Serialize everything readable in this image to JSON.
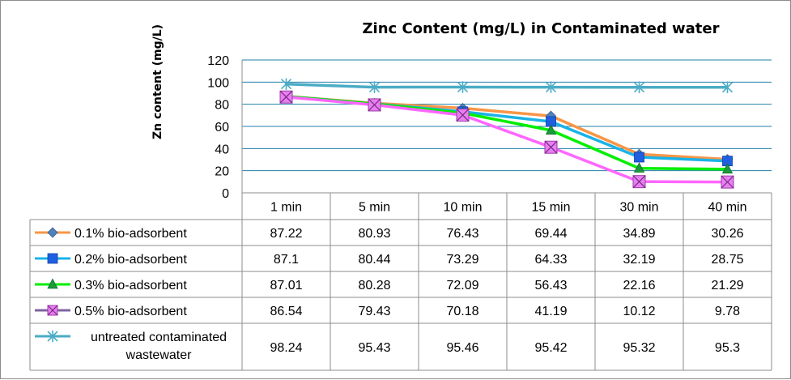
{
  "chart_data": {
    "type": "line",
    "title": "Zinc Content (mg/L) in Contaminated water",
    "xlabel": "",
    "ylabel": "Zn content (mg/L)",
    "ylim": [
      0,
      120
    ],
    "yticks": [
      "0",
      "20",
      "40",
      "60",
      "80",
      "100",
      "120"
    ],
    "grid": true,
    "legend": "data-table",
    "categories": [
      "1 min",
      "5 min",
      "10 min",
      "15 min",
      "30 min",
      "40 min"
    ],
    "series": [
      {
        "name": "0.1% bio-adsorbent",
        "values": [
          "87.22",
          "80.93",
          "76.43",
          "69.44",
          "34.89",
          "30.26"
        ],
        "line_color": "#f79646",
        "marker_color": "#4f81bd",
        "marker": "diamond"
      },
      {
        "name": "0.2% bio-adsorbent",
        "values": [
          "87.1",
          "80.44",
          "73.29",
          "64.33",
          "32.19",
          "28.75"
        ],
        "line_color": "#1ab2e8",
        "marker_color": "#1f5fe0",
        "marker": "square"
      },
      {
        "name": "0.3% bio-adsorbent",
        "values": [
          "87.01",
          "80.28",
          "72.09",
          "56.43",
          "22.16",
          "21.29"
        ],
        "line_color": "#00ee00",
        "marker_color": "#1a9a3a",
        "marker": "triangle"
      },
      {
        "name": "0.5% bio-adsorbent",
        "values": [
          "86.54",
          "79.43",
          "70.18",
          "41.19",
          "10.12",
          "9.78"
        ],
        "line_color": "#ff66ff",
        "marker_color": "#e87ff0",
        "marker": "xsquare",
        "legend_line_color": "#8064a2"
      },
      {
        "name": "untreated contaminated wastewater",
        "label_lines": [
          "untreated contaminated",
          "wastewater"
        ],
        "values": [
          "98.24",
          "95.43",
          "95.46",
          "95.42",
          "95.32",
          "95.3"
        ],
        "line_color": "#4bacc6",
        "marker_color": "#4bacc6",
        "marker": "star"
      }
    ]
  }
}
